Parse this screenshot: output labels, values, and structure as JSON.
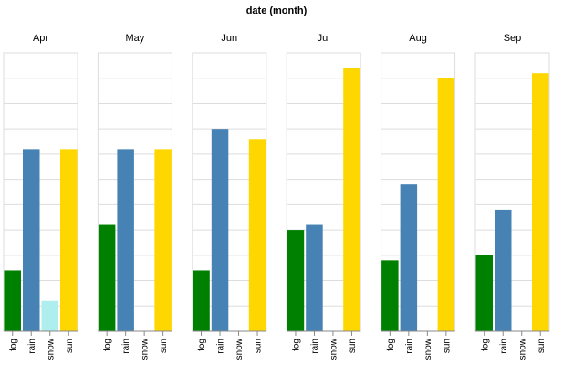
{
  "chart_data": {
    "type": "bar",
    "title": "date (month)",
    "categories": [
      "fog",
      "rain",
      "snow",
      "sun"
    ],
    "facet_by": "month",
    "panels": [
      {
        "month": "Apr",
        "values": {
          "fog": 6,
          "rain": 18,
          "snow": 3,
          "sun": 18
        }
      },
      {
        "month": "May",
        "values": {
          "fog": 10.5,
          "rain": 18,
          "snow": 0,
          "sun": 18
        }
      },
      {
        "month": "Jun",
        "values": {
          "fog": 6,
          "rain": 20,
          "snow": 0,
          "sun": 19
        }
      },
      {
        "month": "Jul",
        "values": {
          "fog": 10,
          "rain": 10.5,
          "snow": 0,
          "sun": 26
        }
      },
      {
        "month": "Aug",
        "values": {
          "fog": 7,
          "rain": 14.5,
          "snow": 0,
          "sun": 25
        }
      },
      {
        "month": "Sep",
        "values": {
          "fog": 7.5,
          "rain": 12,
          "snow": 0,
          "sun": 25.5
        }
      }
    ],
    "ylim": [
      0,
      27.5
    ],
    "ytick_step": 2.5,
    "grid": true,
    "colors": {
      "fog": "#008000",
      "rain": "#4682b4",
      "snow": "#aeeeee",
      "sun": "#ffd700"
    }
  }
}
